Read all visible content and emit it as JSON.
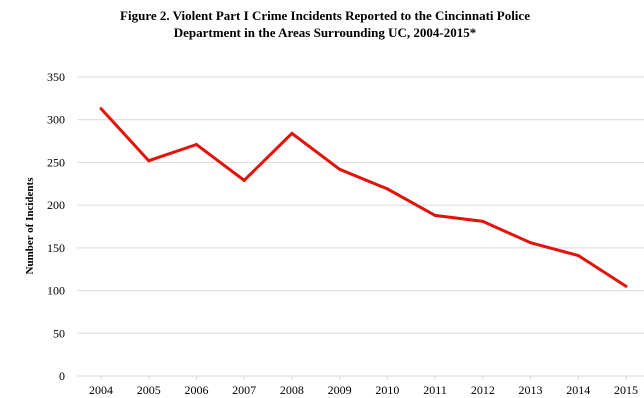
{
  "chart_data": {
    "type": "line",
    "title_lines": [
      "Figure 2. Violent Part I Crime Incidents Reported to the Cincinnati Police",
      "Department in the Areas Surrounding UC, 2004-2015*"
    ],
    "xlabel": "",
    "ylabel": "Number of Incidents",
    "ylim": [
      0,
      350
    ],
    "yticks": [
      0,
      50,
      100,
      150,
      200,
      250,
      300,
      350
    ],
    "grid": true,
    "categories": [
      "2004",
      "2005",
      "2006",
      "2007",
      "2008",
      "2009",
      "2010",
      "2011",
      "2012",
      "2013",
      "2014",
      "2015"
    ],
    "series": [
      {
        "color": "#e3120b",
        "values": [
          313,
          252,
          271,
          229,
          284,
          242,
          219,
          188,
          181,
          156,
          141,
          105
        ]
      }
    ]
  }
}
